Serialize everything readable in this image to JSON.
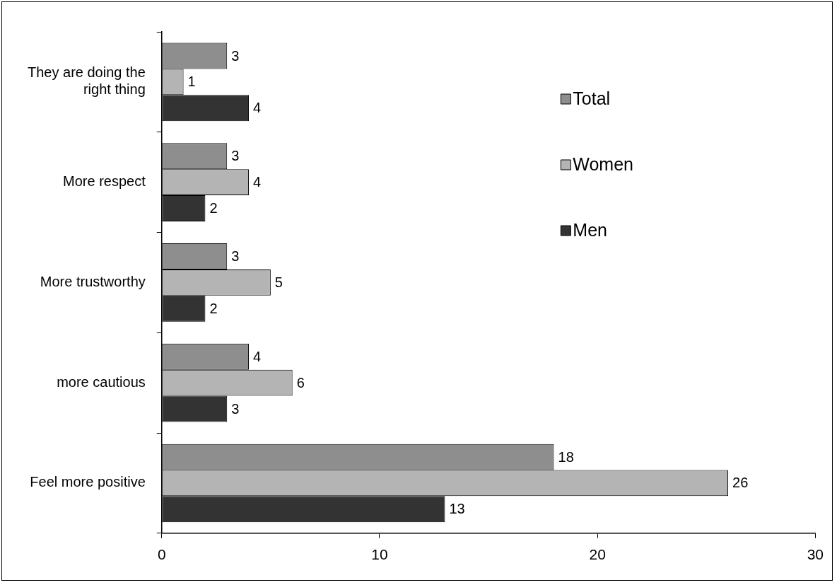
{
  "chart_data": {
    "type": "bar",
    "orientation": "horizontal",
    "categories": [
      "They are doing the right thing",
      "More respect",
      "More trustworthy",
      "more cautious",
      "Feel more positive"
    ],
    "series": [
      {
        "name": "Total",
        "color": "#8e8e8e",
        "values": [
          3,
          3,
          3,
          4,
          18
        ]
      },
      {
        "name": "Women",
        "color": "#b4b4b4",
        "values": [
          1,
          4,
          5,
          6,
          26
        ]
      },
      {
        "name": "Men",
        "color": "#333333",
        "values": [
          4,
          2,
          2,
          3,
          13
        ]
      }
    ],
    "xlim": [
      0,
      30
    ],
    "xticks": [
      0,
      10,
      20,
      30
    ],
    "grid": false,
    "legend": "right",
    "data_labels": true
  }
}
